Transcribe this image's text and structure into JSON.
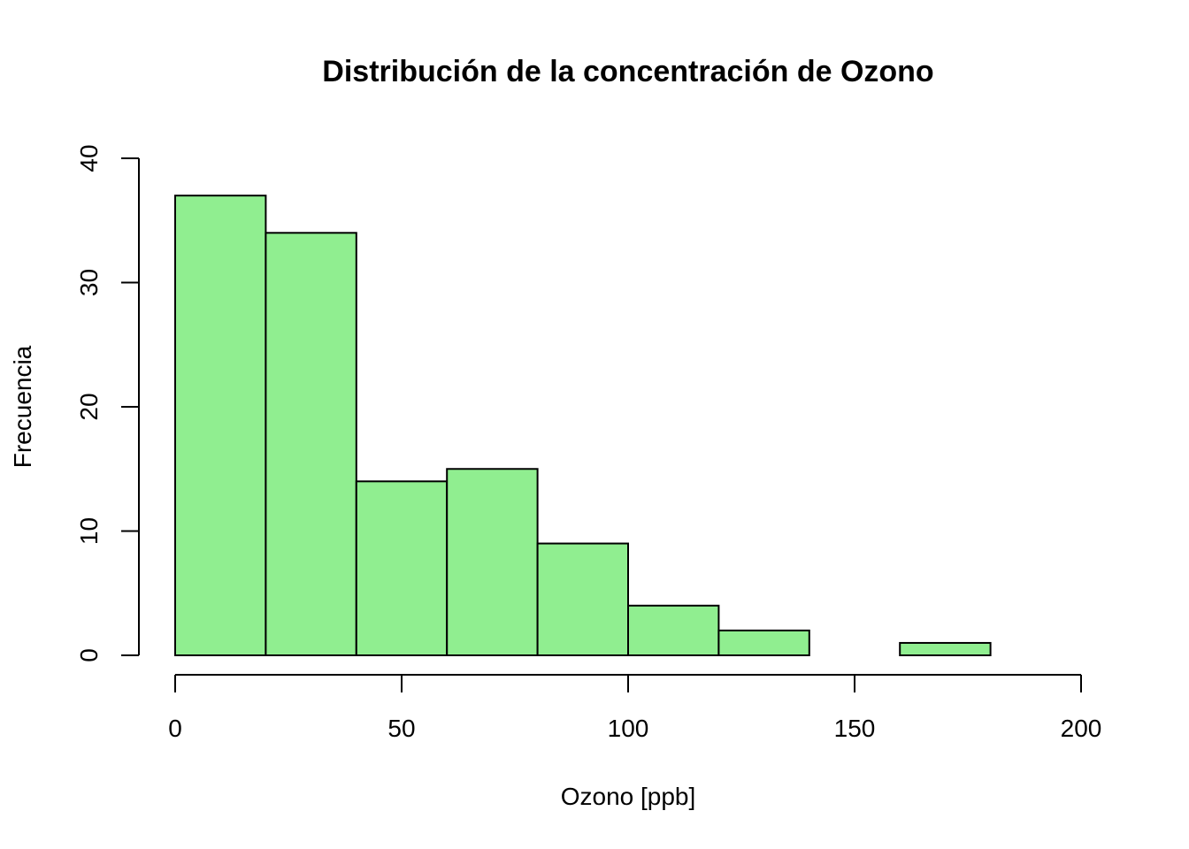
{
  "chart_data": {
    "type": "bar",
    "subtype": "histogram",
    "title": "Distribución de la concentración de Ozono",
    "xlabel": "Ozono [ppb]",
    "ylabel": "Frecuencia",
    "bins": [
      {
        "start": 0,
        "end": 20,
        "count": 37
      },
      {
        "start": 20,
        "end": 40,
        "count": 34
      },
      {
        "start": 40,
        "end": 60,
        "count": 14
      },
      {
        "start": 60,
        "end": 80,
        "count": 15
      },
      {
        "start": 80,
        "end": 100,
        "count": 9
      },
      {
        "start": 100,
        "end": 120,
        "count": 4
      },
      {
        "start": 120,
        "end": 140,
        "count": 2
      },
      {
        "start": 140,
        "end": 160,
        "count": 0
      },
      {
        "start": 160,
        "end": 180,
        "count": 1
      }
    ],
    "xlim": [
      0,
      200
    ],
    "ylim": [
      0,
      40
    ],
    "xticks": [
      0,
      50,
      100,
      150,
      200
    ],
    "yticks": [
      0,
      10,
      20,
      30,
      40
    ],
    "xtick_labels": [
      "0",
      "50",
      "100",
      "150",
      "200"
    ],
    "ytick_labels": [
      "0",
      "10",
      "20",
      "30",
      "40"
    ],
    "bar_color": "#90EE90",
    "edge_color": "#000000",
    "grid": false,
    "legend": "none"
  }
}
